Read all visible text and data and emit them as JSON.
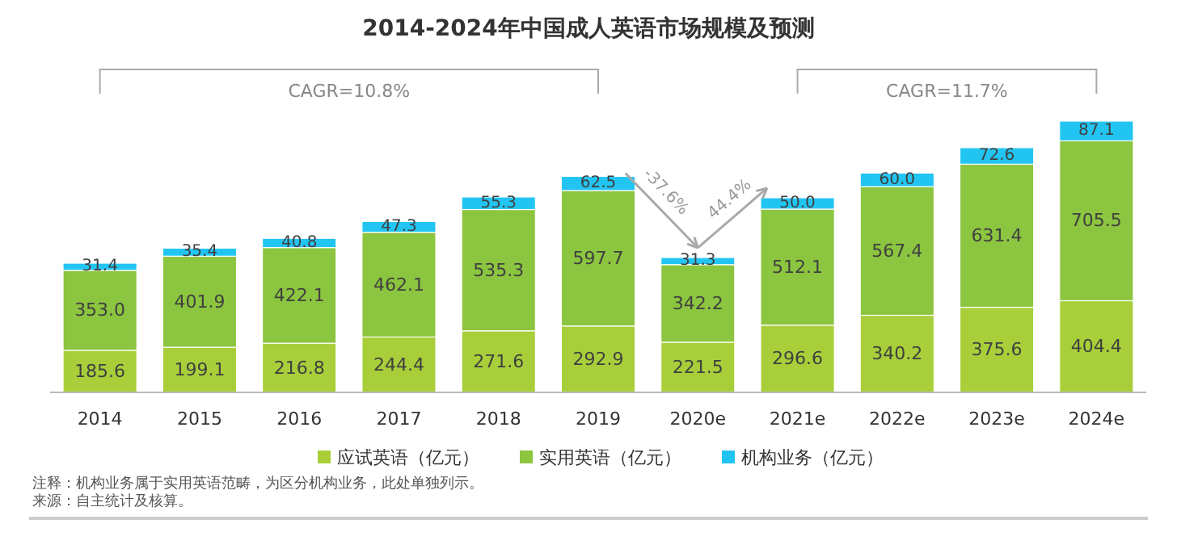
{
  "chart_data": {
    "type": "bar",
    "stacked": true,
    "title": "2014-2024年中国成人英语市场规模及预测",
    "categories": [
      "2014",
      "2015",
      "2016",
      "2017",
      "2018",
      "2019",
      "2020e",
      "2021e",
      "2022e",
      "2023e",
      "2024e"
    ],
    "series": [
      {
        "name": "应试英语（亿元）",
        "color": "#a8cf3a",
        "values": [
          185.6,
          199.1,
          216.8,
          244.4,
          271.6,
          292.9,
          221.5,
          296.6,
          340.2,
          375.6,
          404.4
        ],
        "value_labels": [
          "185.6",
          "199.1",
          "216.8",
          "244.4",
          "271.6",
          "292.9",
          "221.5",
          "296.6",
          "340.2",
          "375.6",
          "404.4"
        ]
      },
      {
        "name": "实用英语（亿元）",
        "color": "#8cc53f",
        "values": [
          353.0,
          401.9,
          422.1,
          462.1,
          535.3,
          597.7,
          342.2,
          512.1,
          567.4,
          631.4,
          705.5
        ],
        "value_labels": [
          "353.0",
          "401.9",
          "422.1",
          "462.1",
          "535.3",
          "597.7",
          "342.2",
          "512.1",
          "567.4",
          "631.4",
          "705.5"
        ]
      },
      {
        "name": "机构业务（亿元）",
        "color": "#22c5f2",
        "values": [
          31.4,
          35.4,
          40.8,
          47.3,
          55.3,
          62.5,
          31.3,
          50.0,
          60.0,
          72.6,
          87.1
        ],
        "value_labels": [
          "31.4",
          "35.4",
          "40.8",
          "47.3",
          "55.3",
          "62.5",
          "31.3",
          "50.0",
          "60.0",
          "72.6",
          "87.1"
        ]
      }
    ],
    "legend": "bottom",
    "grid": false,
    "annotations": [
      "CAGR=10.8%",
      "CAGR=11.7%",
      "-37.6%",
      "44.4%",
      "注释：机构业务属于实用英语范畴，为区分机构业务，此处单独列示。",
      "来源：自主统计及核算。"
    ]
  }
}
